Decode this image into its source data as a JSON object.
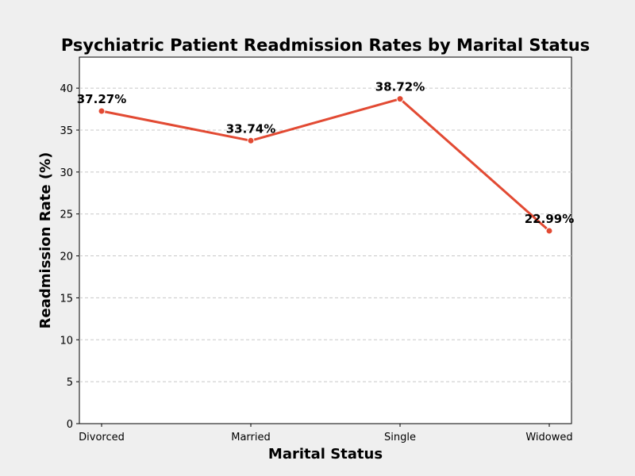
{
  "chart_data": {
    "type": "line",
    "title": "Psychiatric Patient Readmission Rates by Marital Status",
    "xlabel": "Marital Status",
    "ylabel": "Readmission Rate (%)",
    "categories": [
      "Divorced",
      "Married",
      "Single",
      "Widowed"
    ],
    "values": [
      37.27,
      33.74,
      38.72,
      22.99
    ],
    "data_labels": [
      "37.27%",
      "33.74%",
      "38.72%",
      "22.99%"
    ],
    "ylim": [
      0,
      43.7
    ],
    "yticks": [
      0,
      5,
      10,
      15,
      20,
      25,
      30,
      35,
      40
    ],
    "grid": true,
    "line_color": "#e24a33",
    "background_color": "#efefef",
    "plot_background_color": "#ffffff",
    "grid_color": "#c8c8c8"
  }
}
